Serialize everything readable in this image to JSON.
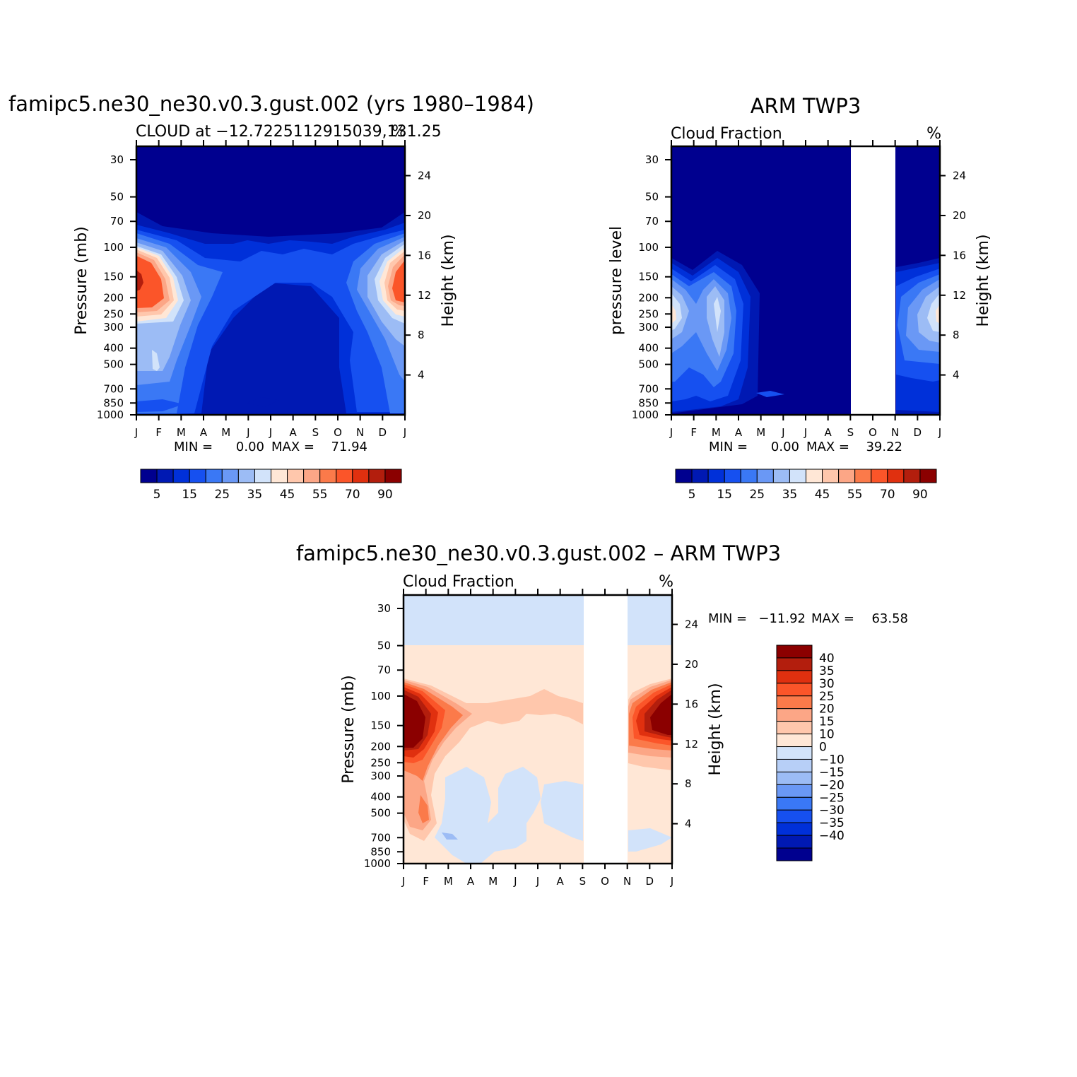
{
  "figure": {
    "months": [
      "J",
      "F",
      "M",
      "A",
      "M",
      "J",
      "J",
      "A",
      "S",
      "O",
      "N",
      "D",
      "J"
    ],
    "pressure_ticks": [
      30,
      50,
      70,
      100,
      150,
      200,
      250,
      300,
      400,
      500,
      700,
      850,
      1000
    ],
    "height_ticks": [
      24,
      20,
      16,
      12,
      8,
      4
    ],
    "height_label": "Height (km)"
  },
  "chart_data": [
    {
      "type": "heatmap",
      "id": "model",
      "title": "famipc5.ne30_ne30.v0.3.gust.002 (yrs 1980–1984)",
      "subtitle": "CLOUD at −12.7225112915039,131.25",
      "units": "%",
      "xlabel": "",
      "ylabel": "Pressure (mb)",
      "ylabel_right": "Height (km)",
      "x": [
        "J",
        "F",
        "M",
        "A",
        "M",
        "J",
        "J",
        "A",
        "S",
        "O",
        "N",
        "D",
        "J"
      ],
      "y": [
        30,
        50,
        70,
        100,
        150,
        200,
        250,
        300,
        400,
        500,
        700,
        850,
        1000
      ],
      "min_label": "MIN =",
      "min_value": "0.00",
      "max_label": "MAX =",
      "max_value": "71.94",
      "colorbar_labels": [
        "5",
        "15",
        "25",
        "35",
        "45",
        "55",
        "70",
        "90"
      ],
      "colorbar_levels": [
        2.5,
        5,
        10,
        15,
        20,
        25,
        30,
        35,
        40,
        45,
        50,
        55,
        60,
        70,
        80,
        90
      ],
      "features": [
        {
          "desc": "upper-level cloud peak Dec-Feb near 150-200 mb",
          "months": [
            "J",
            "F"
          ],
          "pressure_mb": [
            100,
            250
          ],
          "value": 65
        },
        {
          "desc": "mid-level maximum Feb near 500 mb",
          "months": [
            "F"
          ],
          "pressure_mb": [
            400,
            700
          ],
          "value": 30
        }
      ]
    },
    {
      "type": "heatmap",
      "id": "obs",
      "title": "ARM TWP3",
      "subtitle": "Cloud Fraction",
      "units": "%",
      "ylabel": "pressure level",
      "ylabel_right": "Height (km)",
      "x": [
        "J",
        "F",
        "M",
        "A",
        "M",
        "J",
        "J",
        "A",
        "S",
        "O",
        "N",
        "D",
        "J"
      ],
      "y": [
        30,
        50,
        70,
        100,
        150,
        200,
        250,
        300,
        400,
        500,
        700,
        850,
        1000
      ],
      "missing_months": [
        "S",
        "O"
      ],
      "min_label": "MIN =",
      "min_value": "0.00",
      "max_label": "MAX =",
      "max_value": "39.22",
      "colorbar_labels": [
        "5",
        "15",
        "25",
        "35",
        "45",
        "55",
        "70",
        "90"
      ],
      "colorbar_levels": [
        2.5,
        5,
        10,
        15,
        20,
        25,
        30,
        35,
        40,
        45,
        50,
        55,
        60,
        70,
        80,
        90
      ],
      "features": [
        {
          "desc": "peak cloud Jan near 250 mb",
          "months": [
            "J"
          ],
          "pressure_mb": [
            200,
            300
          ],
          "value": 38
        }
      ]
    },
    {
      "type": "heatmap",
      "id": "diff",
      "title": "famipc5.ne30_ne30.v0.3.gust.002 – ARM TWP3",
      "subtitle": "Cloud Fraction",
      "units": "%",
      "ylabel": "Pressure (mb)",
      "ylabel_right": "Height (km)",
      "x": [
        "J",
        "F",
        "M",
        "A",
        "M",
        "J",
        "J",
        "A",
        "S",
        "O",
        "N",
        "D",
        "J"
      ],
      "y": [
        30,
        50,
        70,
        100,
        150,
        200,
        250,
        300,
        400,
        500,
        700,
        850,
        1000
      ],
      "missing_months": [
        "S",
        "O"
      ],
      "min_label": "MIN =",
      "min_value": "−11.92",
      "max_label": "MAX =",
      "max_value": "63.58",
      "colorbar_labels": [
        "40",
        "35",
        "30",
        "25",
        "20",
        "15",
        "10",
        "0",
        "−10",
        "−15",
        "−20",
        "−25",
        "−30",
        "−35",
        "−40"
      ],
      "colorbar_levels": [
        40,
        35,
        30,
        25,
        20,
        15,
        10,
        0,
        -10,
        -15,
        -20,
        -25,
        -30,
        -35,
        -40
      ],
      "features": [
        {
          "desc": "large positive bias Jan-Feb near 150 mb",
          "months": [
            "J",
            "F"
          ],
          "pressure_mb": [
            100,
            200
          ],
          "value": 55
        },
        {
          "desc": "small negative bias Mar-Jun mid troposphere",
          "months": [
            "M",
            "A",
            "M",
            "J"
          ],
          "pressure_mb": [
            300,
            850
          ],
          "value": -5
        }
      ]
    }
  ]
}
